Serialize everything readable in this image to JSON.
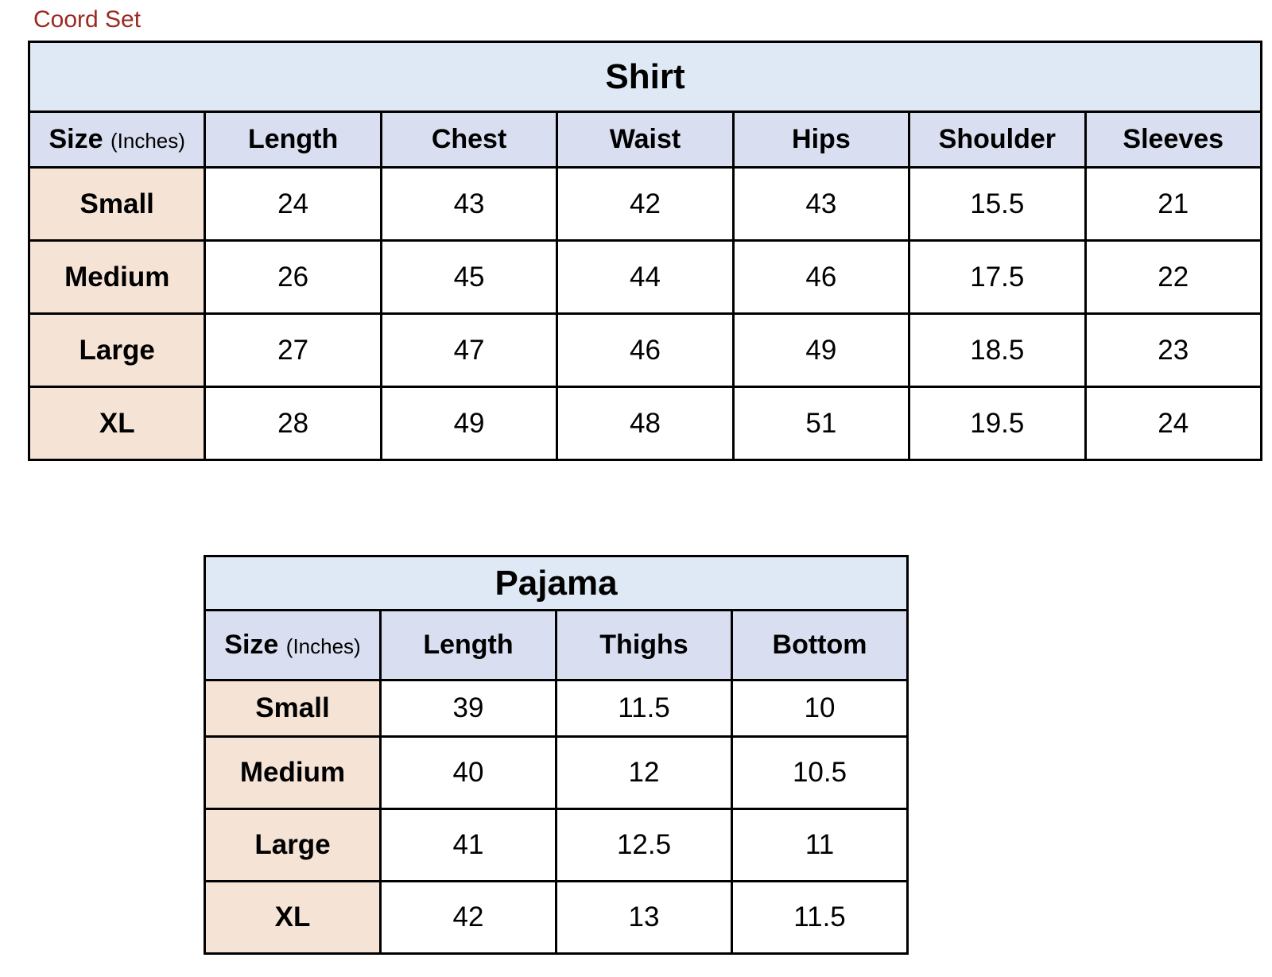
{
  "document_title": "Coord Set",
  "colors": {
    "title_text": "#9b2a22",
    "title_row_bg": "#dfe9f5",
    "header_row_bg": "#d9dff0",
    "size_column_bg": "#f5e3d6"
  },
  "tables": [
    {
      "id": "shirt",
      "title": "Shirt",
      "size_header": "Size",
      "size_unit": "(Inches)",
      "columns": [
        "Length",
        "Chest",
        "Waist",
        "Hips",
        "Shoulder",
        "Sleeves"
      ],
      "rows": [
        {
          "size": "Small",
          "values": [
            "24",
            "43",
            "42",
            "43",
            "15.5",
            "21"
          ]
        },
        {
          "size": "Medium",
          "values": [
            "26",
            "45",
            "44",
            "46",
            "17.5",
            "22"
          ]
        },
        {
          "size": "Large",
          "values": [
            "27",
            "47",
            "46",
            "49",
            "18.5",
            "23"
          ]
        },
        {
          "size": "XL",
          "values": [
            "28",
            "49",
            "48",
            "51",
            "19.5",
            "24"
          ]
        }
      ]
    },
    {
      "id": "pajama",
      "title": "Pajama",
      "size_header": "Size",
      "size_unit": "(Inches)",
      "columns": [
        "Length",
        "Thighs",
        "Bottom"
      ],
      "rows": [
        {
          "size": "Small",
          "values": [
            "39",
            "11.5",
            "10"
          ]
        },
        {
          "size": "Medium",
          "values": [
            "40",
            "12",
            "10.5"
          ]
        },
        {
          "size": "Large",
          "values": [
            "41",
            "12.5",
            "11"
          ]
        },
        {
          "size": "XL",
          "values": [
            "42",
            "13",
            "11.5"
          ]
        }
      ]
    }
  ]
}
